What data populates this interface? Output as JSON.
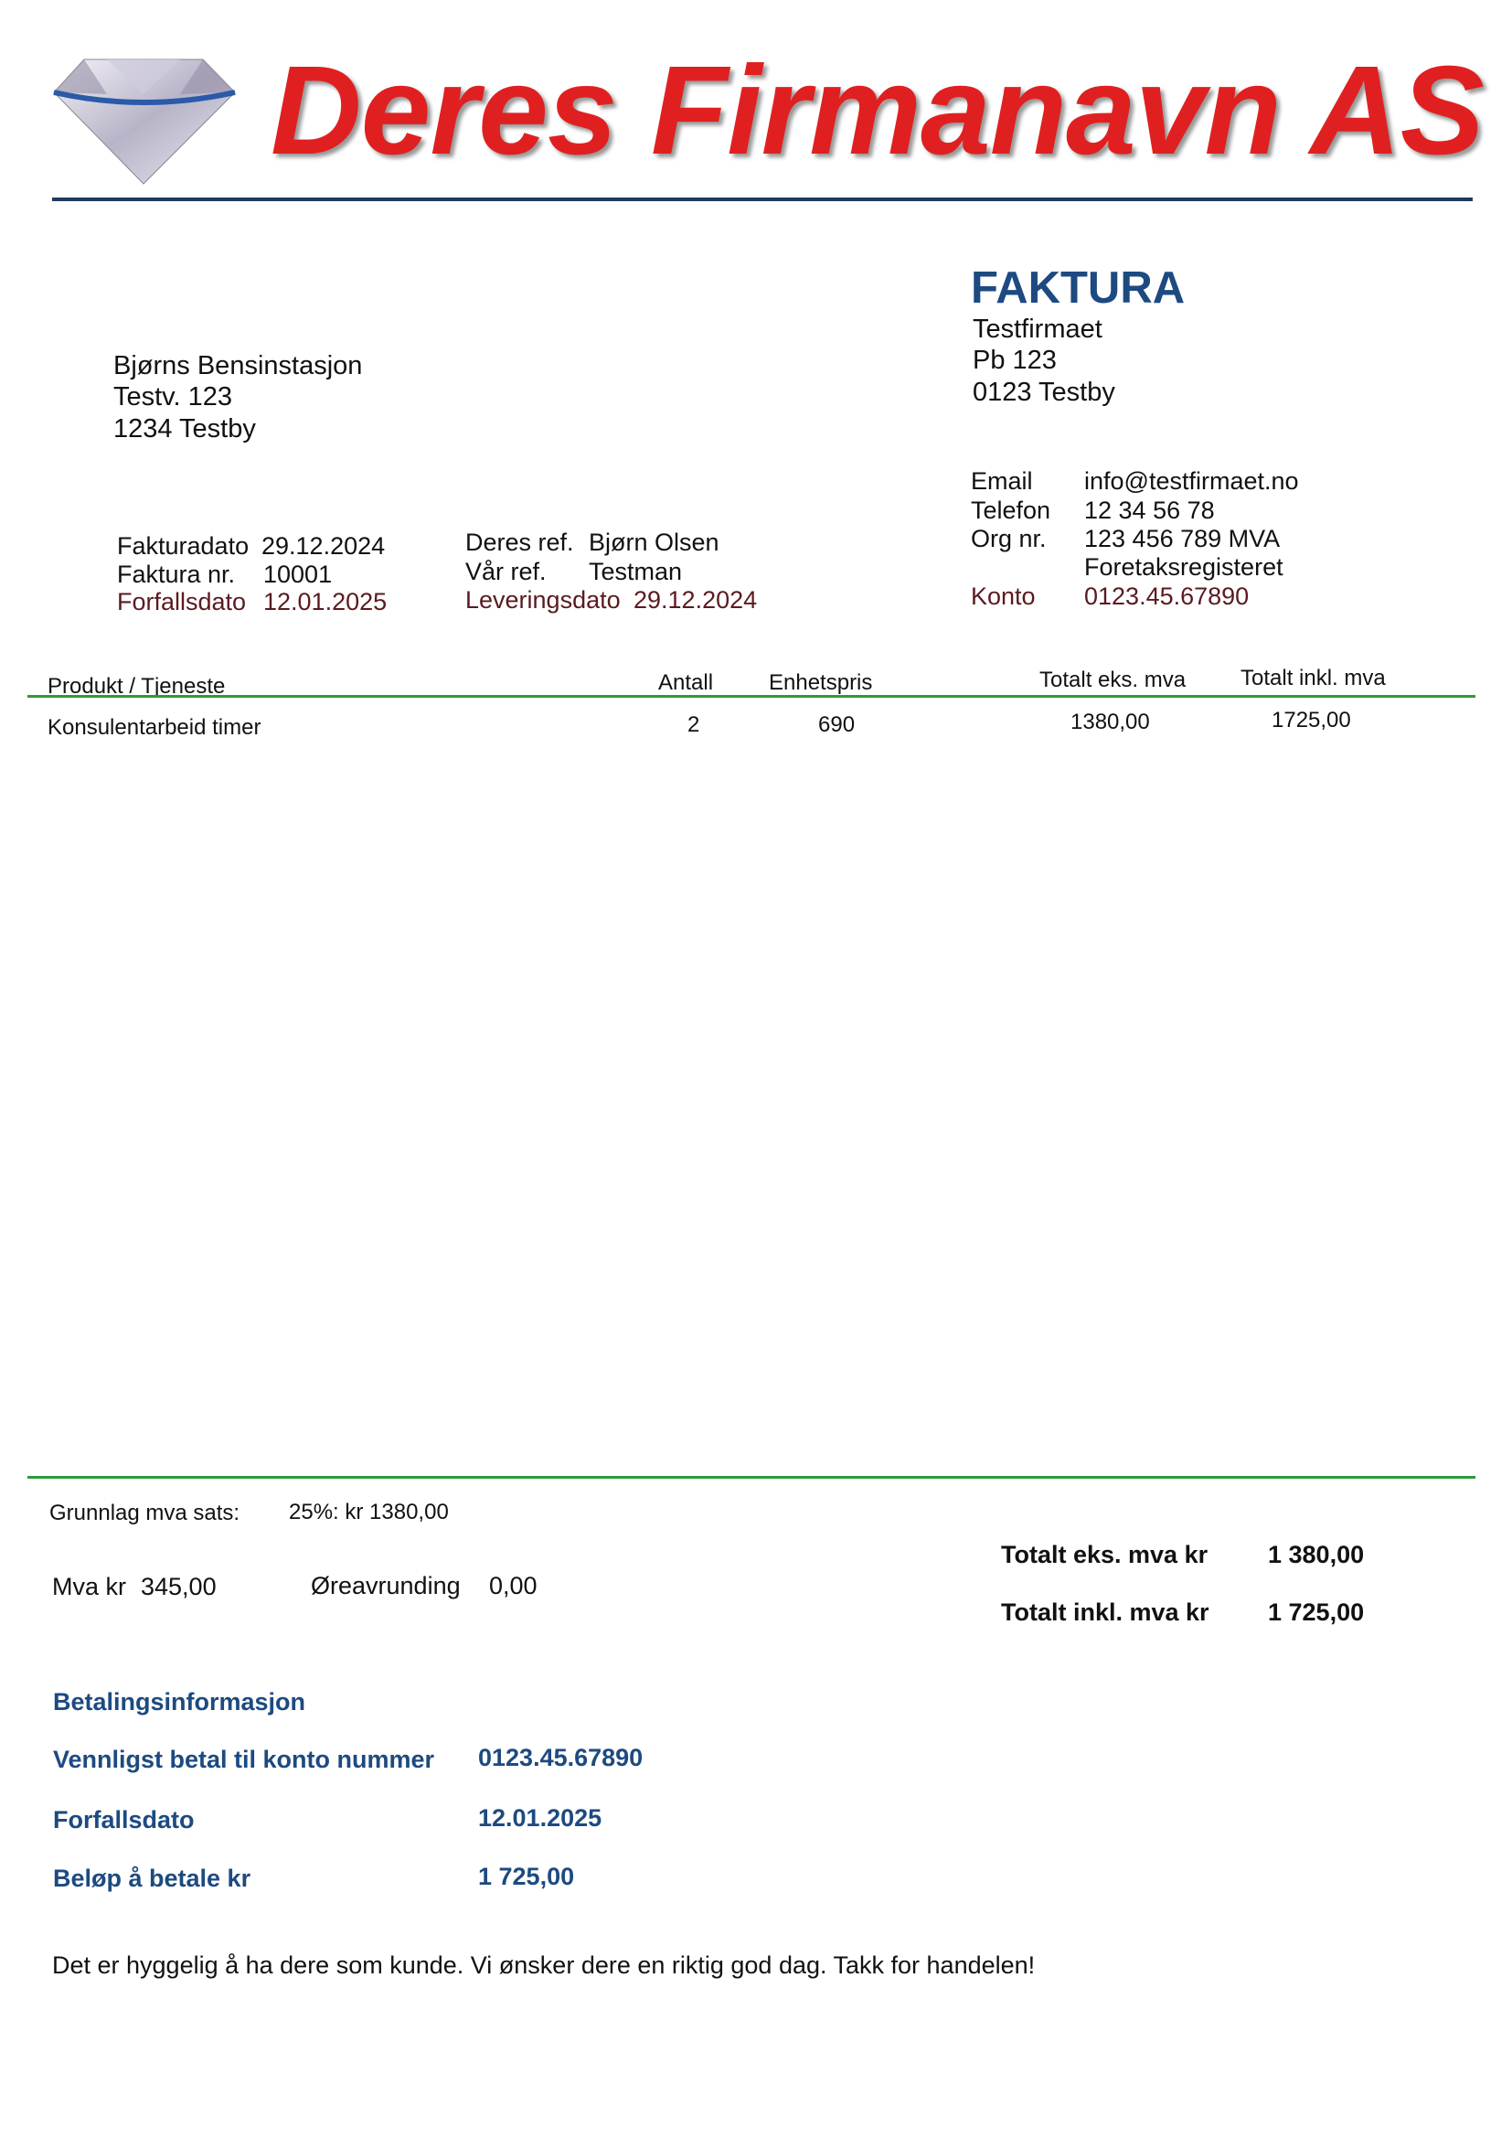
{
  "header": {
    "company_name": "Deres Firmanavn AS",
    "logo_icon": "diamond-icon",
    "brand_color": "#e02020",
    "rule_color": "#1f3a5a"
  },
  "title": "FAKTURA",
  "sender": {
    "name": "Testfirmaet",
    "address1": "Pb 123",
    "address2": "0123 Testby",
    "email_label": "Email",
    "email": "info@testfirmaet.no",
    "phone_label": "Telefon",
    "phone": "12 34 56 78",
    "org_label": "Org nr.",
    "org": "123 456 789 MVA",
    "registry": "Foretaksregisteret",
    "account_label": "Konto",
    "account": "0123.45.67890"
  },
  "recipient": {
    "name": "Bjørns Bensinstasjon",
    "address1": "Testv. 123",
    "address2": "1234 Testby"
  },
  "meta": {
    "invoice_date_label": "Fakturadato",
    "invoice_date": "29.12.2024",
    "invoice_no_label": "Faktura nr.",
    "invoice_no": "10001",
    "due_date_label": "Forfallsdato",
    "due_date": "12.01.2025",
    "your_ref_label": "Deres ref.",
    "your_ref": "Bjørn Olsen",
    "our_ref_label": "Vår ref.",
    "our_ref": "Testman",
    "delivery_label": "Leveringsdato",
    "delivery_date": "29.12.2024"
  },
  "table": {
    "headers": [
      "Produkt / Tjeneste",
      "Antall",
      "Enhetspris",
      "Totalt eks. mva",
      "Totalt inkl. mva"
    ],
    "rows": [
      [
        "Konsulentarbeid timer",
        "2",
        "690",
        "1380,00",
        "1725,00"
      ]
    ],
    "line_color": "#2a9a3a"
  },
  "summary": {
    "basis_label": "Grunnlag mva sats:",
    "basis_value": "25%: kr 1380,00",
    "vat_label": "Mva kr",
    "vat_value": "345,00",
    "rounding_label": "Øreavrunding",
    "rounding_value": "0,00",
    "total_ex_label": "Totalt eks. mva kr",
    "total_ex_value": "1 380,00",
    "total_inc_label": "Totalt inkl. mva kr",
    "total_inc_value": "1 725,00"
  },
  "payment": {
    "heading": "Betalingsinformasjon",
    "account_label": "Vennligst betal til konto nummer",
    "account": "0123.45.67890",
    "due_label": "Forfallsdato",
    "due": "12.01.2025",
    "amount_label": "Beløp å betale kr",
    "amount": "1 725,00"
  },
  "footer": "Det er hyggelig å ha dere som kunde. Vi ønsker dere en riktig god dag. Takk for handelen!"
}
